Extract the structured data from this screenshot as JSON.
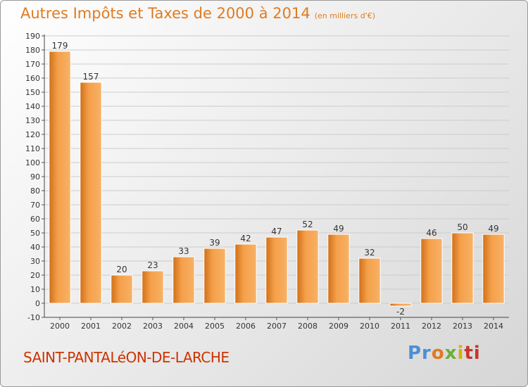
{
  "title": "Autres Impôts et Taxes de 2000 à 2014",
  "subtitle": "(en milliers d'€)",
  "commune": "SAINT-PANTALéON-DE-LARCHE",
  "logo": {
    "text": "Proxiti",
    "parts": [
      "Pr",
      "o",
      "x",
      "i",
      "ti"
    ]
  },
  "colors": {
    "bar": "#f5a04a",
    "bar_dark": "#d06f18",
    "title": "#e07b20",
    "commune": "#cc3300",
    "grid": "#cccccc"
  },
  "chart_data": {
    "type": "bar",
    "categories": [
      "2000",
      "2001",
      "2002",
      "2003",
      "2004",
      "2005",
      "2006",
      "2007",
      "2008",
      "2009",
      "2010",
      "2011",
      "2012",
      "2013",
      "2014"
    ],
    "values": [
      179,
      157,
      20,
      23,
      33,
      39,
      42,
      47,
      52,
      49,
      32,
      -2,
      46,
      50,
      49
    ],
    "ylim": [
      -10,
      190
    ],
    "yticks": [
      -10,
      0,
      10,
      20,
      30,
      40,
      50,
      60,
      70,
      80,
      90,
      100,
      110,
      120,
      130,
      140,
      150,
      160,
      170,
      180,
      190
    ],
    "grid": true,
    "legend": "none"
  }
}
